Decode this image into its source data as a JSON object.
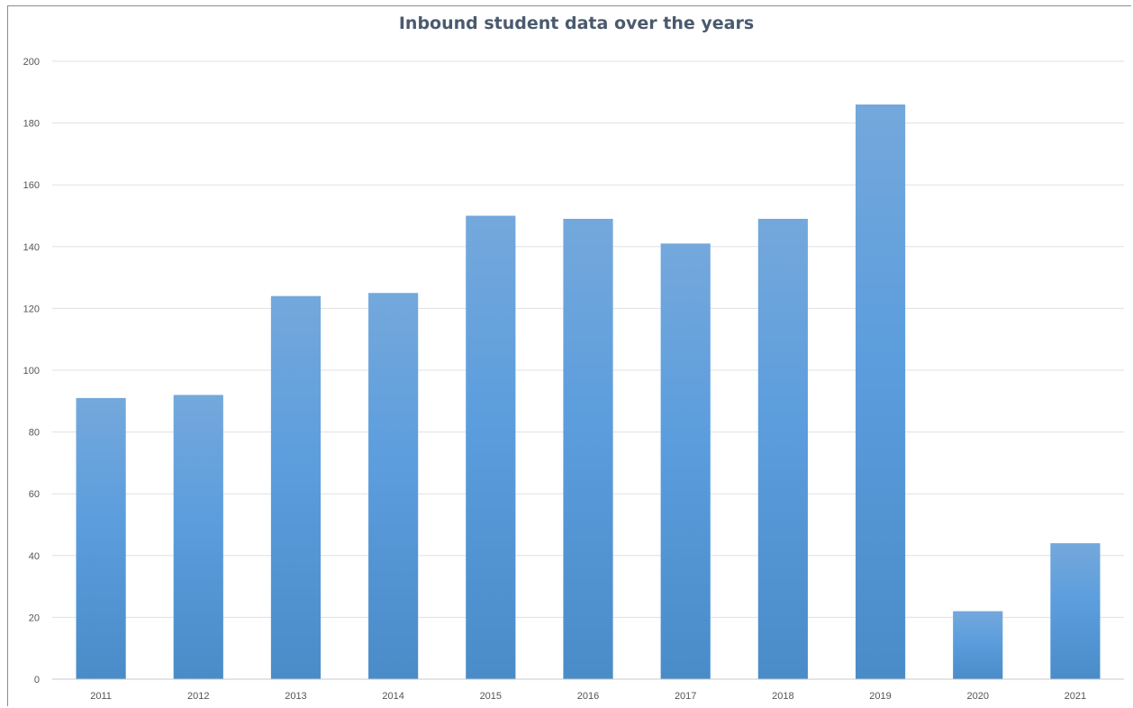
{
  "chart_data": {
    "type": "bar",
    "title": "Inbound student data over the years",
    "xlabel": "",
    "ylabel": "",
    "categories": [
      "2011",
      "2012",
      "2013",
      "2014",
      "2015",
      "2016",
      "2017",
      "2018",
      "2019",
      "2020",
      "2021"
    ],
    "values": [
      91,
      92,
      124,
      125,
      150,
      149,
      141,
      149,
      186,
      22,
      44
    ],
    "ylim": [
      0,
      200
    ],
    "yticks": [
      0,
      20,
      40,
      60,
      80,
      100,
      120,
      140,
      160,
      180,
      200
    ],
    "grid": "horizontal",
    "legend": "none",
    "colors": {
      "bar_top": "#74a8dc",
      "bar_mid": "#5b9ddd",
      "bar_bottom": "#4a8cc8",
      "gridline": "#e0e0e0",
      "axis": "#c8c8c8",
      "title": "#4a5a6e"
    }
  }
}
